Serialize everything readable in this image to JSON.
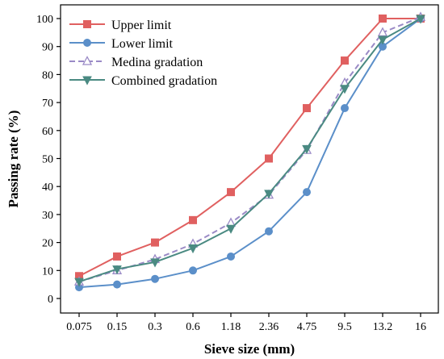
{
  "chart_data": {
    "type": "line",
    "xlabel": "Sieve size (mm)",
    "ylabel": "Passing rate (%)",
    "categories": [
      "0.075",
      "0.15",
      "0.3",
      "0.6",
      "1.18",
      "2.36",
      "4.75",
      "9.5",
      "13.2",
      "16"
    ],
    "ylim": [
      0,
      100
    ],
    "yticks": [
      "0",
      "10",
      "20",
      "30",
      "40",
      "50",
      "60",
      "70",
      "80",
      "90",
      "100"
    ],
    "grid": false,
    "legend_position": "top-left",
    "series": [
      {
        "name": "Upper limit",
        "values": [
          8,
          15,
          20,
          28,
          38,
          50,
          68,
          85,
          100,
          100
        ],
        "color": "#e06060",
        "marker": "square",
        "dash": false
      },
      {
        "name": "Lower limit",
        "values": [
          4,
          5,
          7,
          10,
          15,
          24,
          38,
          68,
          90,
          100
        ],
        "color": "#5b8fc9",
        "marker": "circle",
        "dash": false
      },
      {
        "name": "Medina gradation",
        "values": [
          6,
          10,
          14,
          19.5,
          27,
          37,
          53,
          77,
          95,
          100.5
        ],
        "color": "#9a8ac6",
        "marker": "triangle-up-open",
        "dash": true
      },
      {
        "name": "Combined gradation",
        "values": [
          6,
          10.5,
          13,
          18,
          25,
          37.5,
          53.5,
          75,
          92.5,
          100
        ],
        "color": "#4a8a82",
        "marker": "triangle-down",
        "dash": false
      }
    ]
  }
}
